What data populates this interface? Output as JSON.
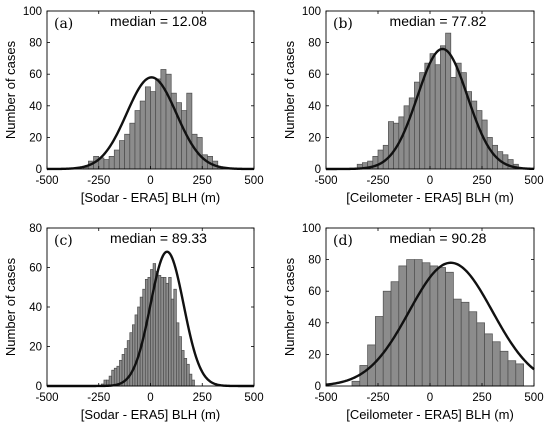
{
  "chart_data": [
    {
      "type": "bar",
      "panel_label": "(a)",
      "annotation": "median = 12.08",
      "xlabel": "[Sodar - ERA5] BLH (m)",
      "ylabel": "Number of cases",
      "xlim": [
        -500,
        500
      ],
      "ylim": [
        0,
        100
      ],
      "xticks": [
        -500,
        -250,
        0,
        250,
        500
      ],
      "yticks": [
        0,
        20,
        40,
        60,
        80,
        100
      ],
      "bin_width": 25,
      "bin_start": -325,
      "values": [
        1,
        5,
        8,
        7,
        6,
        8,
        12,
        18,
        22,
        29,
        37,
        43,
        52,
        49,
        57,
        63,
        60,
        48,
        42,
        37,
        48,
        22,
        20,
        9,
        8,
        5,
        1
      ],
      "fit": {
        "shape": "gaussian",
        "mean": 5,
        "std": 120,
        "peak": 58
      }
    },
    {
      "type": "bar",
      "panel_label": "(b)",
      "annotation": "median = 77.82",
      "xlabel": "[Ceilometer - ERA5] BLH (m)",
      "ylabel": "Number of cases",
      "xlim": [
        -500,
        500
      ],
      "ylim": [
        0,
        100
      ],
      "xticks": [
        -500,
        -250,
        0,
        250,
        500
      ],
      "yticks": [
        0,
        20,
        40,
        60,
        80,
        100
      ],
      "bin_width": 25,
      "bin_start": -350,
      "values": [
        3,
        4,
        5,
        8,
        12,
        15,
        30,
        29,
        33,
        40,
        45,
        55,
        61,
        67,
        73,
        66,
        78,
        86,
        58,
        67,
        61,
        49,
        43,
        37,
        31,
        20,
        15,
        11,
        9,
        6,
        3
      ],
      "fit": {
        "shape": "gaussian",
        "mean": 60,
        "std": 120,
        "peak": 76
      }
    },
    {
      "type": "bar",
      "panel_label": "(c)",
      "annotation": "median = 89.33",
      "xlabel": "[Sodar - ERA5] BLH (m)",
      "ylabel": "Number of cases",
      "xlim": [
        -500,
        500
      ],
      "ylim": [
        0,
        80
      ],
      "xticks": [
        -500,
        -250,
        0,
        250,
        500
      ],
      "yticks": [
        0,
        20,
        40,
        60,
        80
      ],
      "bin_width": 12.5,
      "bin_start": -237.5,
      "values": [
        1,
        3,
        3,
        5,
        8,
        9,
        10,
        13,
        16,
        19,
        23,
        27,
        31,
        36,
        40,
        45,
        49,
        54,
        55,
        59,
        62,
        58,
        56,
        55,
        55,
        52,
        55,
        44,
        49,
        32,
        25,
        18,
        14,
        11,
        6,
        3
      ],
      "fit": {
        "shape": "gaussian",
        "mean": 80,
        "std": 80,
        "peak": 68
      }
    },
    {
      "type": "bar",
      "panel_label": "(d)",
      "annotation": "median = 90.28",
      "xlabel": "[Ceilometer - ERA5] BLH (m)",
      "ylabel": "Number of cases",
      "xlim": [
        -500,
        500
      ],
      "ylim": [
        0,
        100
      ],
      "xticks": [
        -500,
        -250,
        0,
        250,
        500
      ],
      "yticks": [
        0,
        20,
        40,
        60,
        80,
        100
      ],
      "bin_width": 37.5,
      "bin_start": -375,
      "values": [
        3,
        13,
        26,
        44,
        60,
        66,
        76,
        80,
        80,
        78,
        76,
        75,
        72,
        55,
        53,
        47,
        40,
        33,
        28,
        22,
        16,
        14
      ],
      "fit": {
        "shape": "gaussian",
        "mean": 100,
        "std": 200,
        "peak": 78
      }
    }
  ]
}
